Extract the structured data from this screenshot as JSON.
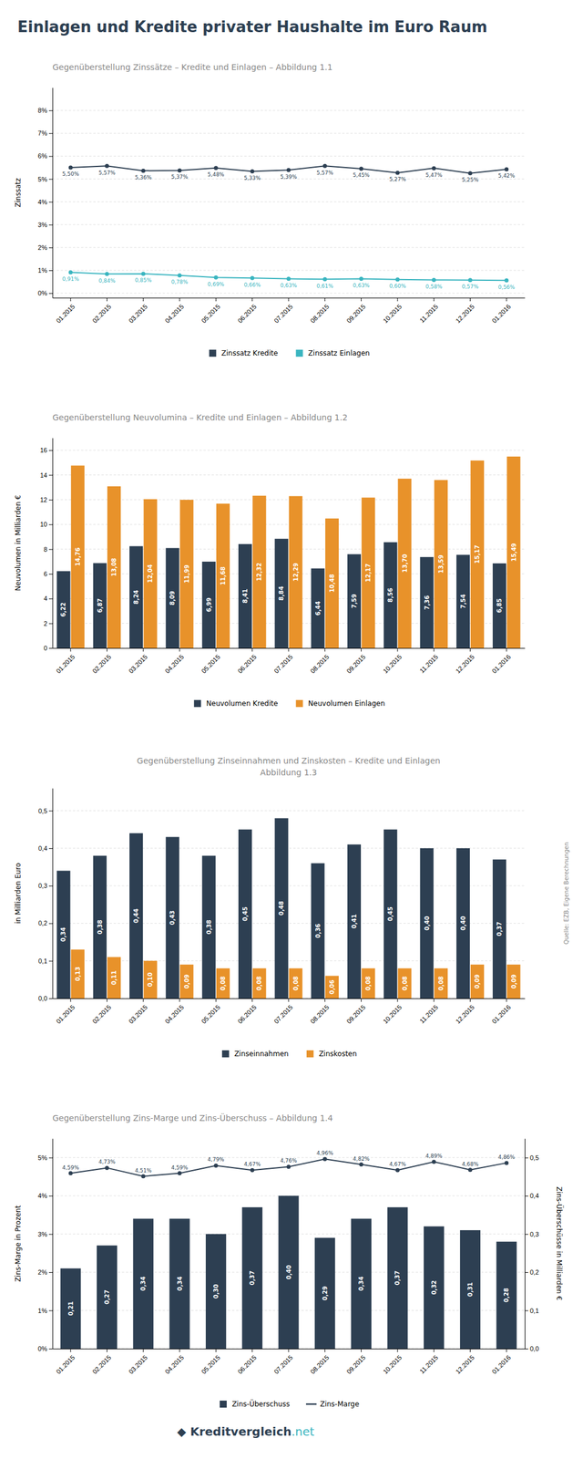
{
  "title": "Einlagen und Kredite privater Haushalte im Euro Raum",
  "annotations": [
    {
      "text": "◆ Kreditvergleich",
      "color": "#2d3f52"
    },
    {
      "text": ".net",
      "color": "#3ab5c0"
    }
  ],
  "chart_data": [
    {
      "type": "line",
      "title": "Gegenüberstellung Zinssätze – Kredite und Einlagen – Abbildung 1.1",
      "categories": [
        "01.2015",
        "02.2015",
        "03.2015",
        "04.2015",
        "05.2015",
        "06.2015",
        "07.2015",
        "08.2015",
        "09.2015",
        "10.2015",
        "11.2015",
        "12.2015",
        "01.2016"
      ],
      "series": [
        {
          "name": "Zinssatz Kredite",
          "color": "#2d3f52",
          "marker": "circle",
          "values": [
            5.5,
            5.57,
            5.36,
            5.37,
            5.48,
            5.33,
            5.39,
            5.57,
            5.45,
            5.27,
            5.47,
            5.25,
            5.42
          ],
          "value_labels": [
            "5,50%",
            "5,57%",
            "5,36%",
            "5,37%",
            "5,48%",
            "5,33%",
            "5,39%",
            "5,57%",
            "5,45%",
            "5,27%",
            "5,47%",
            "5,25%",
            "5,42%"
          ]
        },
        {
          "name": "Zinssatz Einlagen",
          "color": "#3ab5c0",
          "marker": "circle",
          "values": [
            0.91,
            0.84,
            0.85,
            0.78,
            0.69,
            0.66,
            0.63,
            0.61,
            0.63,
            0.6,
            0.58,
            0.57,
            0.56
          ],
          "value_labels": [
            "0,91%",
            "0,84%",
            "0,85%",
            "0,78%",
            "0,69%",
            "0,66%",
            "0,63%",
            "0,61%",
            "0,63%",
            "0,60%",
            "0,58%",
            "0,57%",
            "0,56%"
          ]
        }
      ],
      "ylabel": "Zinssatz",
      "ylim": [
        -0.2,
        9
      ],
      "yticks": [
        {
          "value": 0,
          "label": "0%"
        },
        {
          "value": 1,
          "label": "1%"
        },
        {
          "value": 2,
          "label": "2%"
        },
        {
          "value": 3,
          "label": "3%"
        },
        {
          "value": 4,
          "label": "4%"
        },
        {
          "value": 5,
          "label": "5%"
        },
        {
          "value": 6,
          "label": "6%"
        },
        {
          "value": 7,
          "label": "7%"
        },
        {
          "value": 8,
          "label": "8%"
        }
      ],
      "grid": true,
      "legend": "bottom",
      "data_labels": true
    },
    {
      "type": "bar",
      "title": "Gegenüberstellung Neuvolumina – Kredite und Einlagen  – Abbildung 1.2",
      "categories": [
        "01.2015",
        "02.2015",
        "03.2015",
        "04.2015",
        "05.2015",
        "06.2015",
        "07.2015",
        "08.2015",
        "09.2015",
        "10.2015",
        "11.2015",
        "12.2015",
        "01.2016"
      ],
      "series": [
        {
          "name": "Neuvolumen Kredite",
          "color": "#2d3f52",
          "values": [
            6.22,
            6.87,
            8.24,
            8.09,
            6.99,
            8.41,
            8.84,
            6.44,
            7.59,
            8.56,
            7.36,
            7.54,
            6.85
          ],
          "value_labels": [
            "6,22",
            "6,87",
            "8,24",
            "8,09",
            "6,99",
            "8,41",
            "8,84",
            "6,44",
            "7,59",
            "8,56",
            "7,36",
            "7,54",
            "6,85"
          ]
        },
        {
          "name": "Neuvolumen Einlagen",
          "color": "#e8922a",
          "values": [
            14.76,
            13.08,
            12.04,
            11.99,
            11.68,
            12.32,
            12.29,
            10.48,
            12.17,
            13.7,
            13.59,
            15.17,
            15.49
          ],
          "value_labels": [
            "14,76",
            "13,08",
            "12,04",
            "11,99",
            "11,68",
            "12,32",
            "12,29",
            "10,48",
            "12,17",
            "13,70",
            "13,59",
            "15,17",
            "15,49"
          ]
        }
      ],
      "ylabel": "Neuvolumen in Milliarden €",
      "ylim": [
        0,
        17
      ],
      "yticks": [
        0,
        2,
        4,
        6,
        8,
        10,
        12,
        14,
        16
      ],
      "grid": true,
      "legend": "bottom",
      "data_labels": true
    },
    {
      "type": "bar",
      "title": "Gegenüberstellung Zinseinnahmen und Zinskosten – Kredite und Einlagen",
      "subtitle": "Abbildung 1.3",
      "categories": [
        "01.2015",
        "02.2015",
        "03.2015",
        "04.2015",
        "05.2015",
        "06.2015",
        "07.2015",
        "08.2015",
        "09.2015",
        "10.2015",
        "11.2015",
        "12.2015",
        "01.2016"
      ],
      "series": [
        {
          "name": "Zinseinnahmen",
          "color": "#2d3f52",
          "values": [
            0.34,
            0.38,
            0.44,
            0.43,
            0.38,
            0.45,
            0.48,
            0.36,
            0.41,
            0.45,
            0.4,
            0.4,
            0.37
          ],
          "value_labels": [
            "0,34",
            "0,38",
            "0,44",
            "0,43",
            "0,38",
            "0,45",
            "0,48",
            "0,36",
            "0,41",
            "0,45",
            "0,40",
            "0,40",
            "0,37"
          ]
        },
        {
          "name": "Zinskosten",
          "color": "#e8922a",
          "values": [
            0.13,
            0.11,
            0.1,
            0.09,
            0.08,
            0.08,
            0.08,
            0.06,
            0.08,
            0.08,
            0.08,
            0.09,
            0.09
          ],
          "value_labels": [
            "0,13",
            "0,11",
            "0,10",
            "0,09",
            "0,08",
            "0,08",
            "0,08",
            "0,06",
            "0,08",
            "0,08",
            "0,08",
            "0,09",
            "0,09"
          ]
        }
      ],
      "ylabel": "in Milliarden Euro",
      "ylim": [
        0,
        0.56
      ],
      "yticks": [
        {
          "value": 0,
          "label": "0,0"
        },
        {
          "value": 0.1,
          "label": "0,1"
        },
        {
          "value": 0.2,
          "label": "0,2"
        },
        {
          "value": 0.3,
          "label": "0,3"
        },
        {
          "value": 0.4,
          "label": "0,4"
        },
        {
          "value": 0.5,
          "label": "0,5"
        }
      ],
      "grid": true,
      "legend": "bottom",
      "data_labels": true,
      "annotations": [
        "Quelle: EZB, Eigene Berechnungen"
      ]
    },
    {
      "type": "bar",
      "title": "Gegenüberstellung Zins-Marge und Zins-Überschuss  – Abbildung 1.4",
      "categories": [
        "01.2015",
        "02.2015",
        "03.2015",
        "04.2015",
        "05.2015",
        "06.2015",
        "07.2015",
        "08.2015",
        "09.2015",
        "10.2015",
        "11.2015",
        "12.2015",
        "01.2016"
      ],
      "series": [
        {
          "name": "Zins-Überschuss",
          "color": "#2d3f52",
          "type": "bar",
          "axis": "y2",
          "values": [
            0.21,
            0.27,
            0.34,
            0.34,
            0.3,
            0.37,
            0.4,
            0.29,
            0.34,
            0.37,
            0.32,
            0.31,
            0.28
          ],
          "value_labels": [
            "0,21",
            "0,27",
            "0,34",
            "0,34",
            "0,30",
            "0,37",
            "0,40",
            "0,29",
            "0,34",
            "0,37",
            "0,32",
            "0,31",
            "0,28"
          ]
        },
        {
          "name": "Zins-Marge",
          "color": "#2d3f52",
          "type": "line",
          "marker": "circle",
          "line_style": "solid",
          "values": [
            4.59,
            4.73,
            4.51,
            4.59,
            4.79,
            4.67,
            4.76,
            4.96,
            4.82,
            4.67,
            4.89,
            4.68,
            4.86
          ],
          "value_labels": [
            "4,59%",
            "4,73%",
            "4,51%",
            "4,59%",
            "4,79%",
            "4,67%",
            "4,76%",
            "4,96%",
            "4,82%",
            "4,67%",
            "4,89%",
            "4,68%",
            "4,86%"
          ]
        }
      ],
      "ylabel": "Zins-Marge in Prozent",
      "y2label": "Zins-Überschüsse in Milliarden €",
      "ylim": [
        0,
        5.5
      ],
      "yticks": [
        {
          "value": 0,
          "label": "0%"
        },
        {
          "value": 1,
          "label": "1%"
        },
        {
          "value": 2,
          "label": "2%"
        },
        {
          "value": 3,
          "label": "3%"
        },
        {
          "value": 4,
          "label": "4%"
        },
        {
          "value": 5,
          "label": "5%"
        }
      ],
      "y2lim": [
        0,
        0.55
      ],
      "y2ticks": [
        {
          "value": 0,
          "label": "0,0"
        },
        {
          "value": 0.1,
          "label": "0,1"
        },
        {
          "value": 0.2,
          "label": "0,2"
        },
        {
          "value": 0.3,
          "label": "0,3"
        },
        {
          "value": 0.4,
          "label": "0,4"
        },
        {
          "value": 0.5,
          "label": "0,5"
        }
      ],
      "grid": true,
      "legend": "bottom",
      "data_labels": true
    }
  ]
}
